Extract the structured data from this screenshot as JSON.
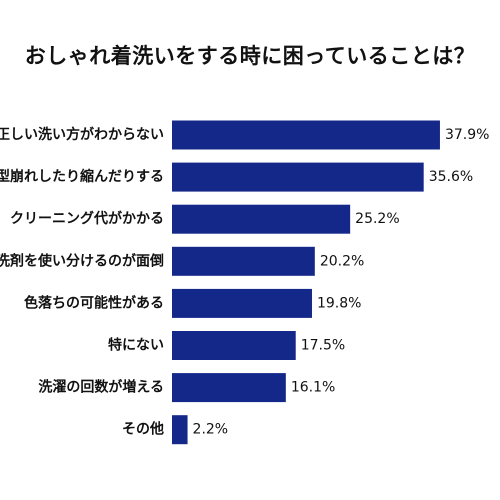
{
  "chart_data": {
    "type": "bar",
    "orientation": "horizontal",
    "title": "おしゃれ着洗いをする時に困っていることは？",
    "categories": [
      "正しい洗い方がわからない",
      "型崩れしたり縮んだりする",
      "クリーニング代がかかる",
      "洗剤を使い分けるのが面倒",
      "色落ちの可能性がある",
      "特にない",
      "洗濯の回数が増える",
      "その他"
    ],
    "values": [
      37.9,
      35.6,
      25.2,
      20.2,
      19.8,
      17.5,
      16.1,
      2.2
    ],
    "value_labels": [
      "37.9%",
      "35.6%",
      "25.2%",
      "20.2%",
      "19.8%",
      "17.5%",
      "16.1%",
      "2.2%"
    ],
    "unit": "%",
    "xlim": [
      0,
      45
    ],
    "bar_color": "#14288a",
    "grid": false,
    "legend": "none"
  }
}
